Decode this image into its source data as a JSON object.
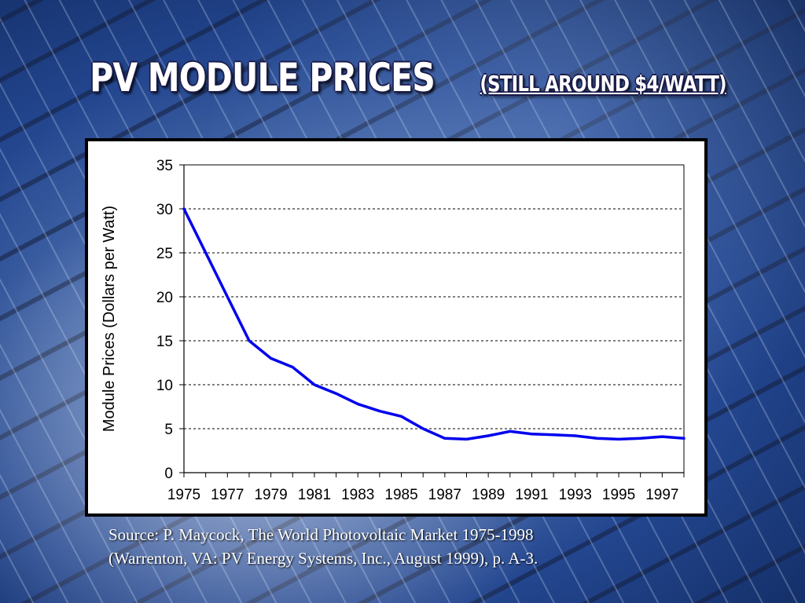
{
  "slide": {
    "title": "PV MODULE PRICES",
    "subtitle": "(STILL AROUND $4/WATT)",
    "source_line1": "Source: P. Maycock, The World Photovoltaic Market 1975-1998",
    "source_line2": "(Warrenton, VA: PV Energy Systems, Inc., August 1999), p. A-3."
  },
  "colors": {
    "line": "#0000ee",
    "grid": "#000000",
    "title_text": "#ffffff"
  },
  "chart_data": {
    "type": "line",
    "title": "",
    "xlabel": "",
    "ylabel": "Module Prices (Dollars per Watt)",
    "ylim": [
      0,
      35
    ],
    "yticks": [
      "0",
      "5",
      "10",
      "15",
      "20",
      "25",
      "30",
      "35"
    ],
    "xticks": [
      "1975",
      "1977",
      "1979",
      "1981",
      "1983",
      "1985",
      "1987",
      "1989",
      "1991",
      "1993",
      "1995",
      "1997"
    ],
    "xlim": [
      1975,
      1998
    ],
    "grid": "horizontal dashed",
    "series": [
      {
        "x": [
          1975,
          1976,
          1977,
          1978,
          1979,
          1980,
          1981,
          1982,
          1983,
          1984,
          1985,
          1986,
          1987,
          1988,
          1989,
          1990,
          1991,
          1992,
          1993,
          1994,
          1995,
          1996,
          1997,
          1998
        ],
        "values": [
          30,
          25,
          20,
          15,
          13,
          12,
          10,
          9,
          7.8,
          7,
          6.4,
          5,
          3.9,
          3.8,
          4.2,
          4.7,
          4.4,
          4.3,
          4.2,
          3.9,
          3.8,
          3.9,
          4.1,
          3.9
        ]
      }
    ]
  }
}
